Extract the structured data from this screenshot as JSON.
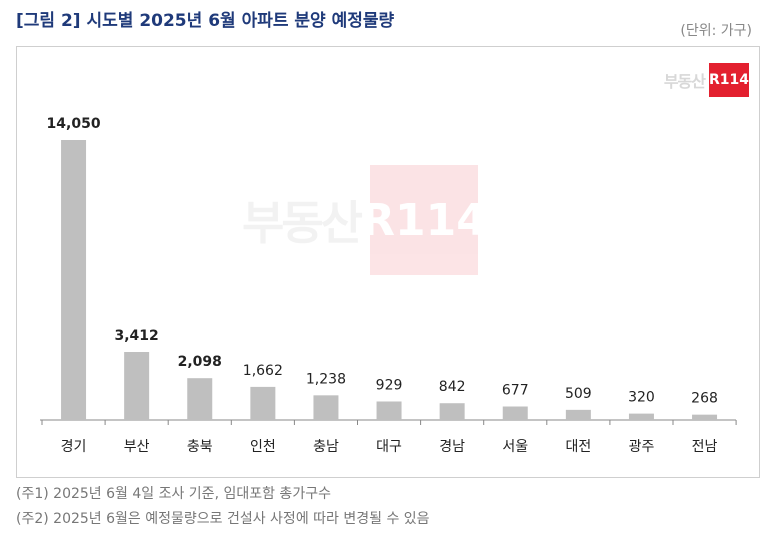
{
  "title": "[그림 2] 시도별 2025년 6월 아파트 분양 예정물량",
  "unit": "(단위: 가구)",
  "logo": {
    "text": "부동산",
    "badge": "R114"
  },
  "watermark": {
    "text": "부동산",
    "badge": "R114"
  },
  "notes": [
    "(주1) 2025년 6월 4일 조사 기준, 임대포함 총가구수",
    "(주2) 2025년 6월은 예정물량으로 건설사 사정에 따라 변경될 수 있음"
  ],
  "colors": {
    "bar": "#bfbfbf",
    "title": "#1f3a7a",
    "logo": "#e3202f"
  },
  "chart_data": {
    "type": "bar",
    "categories": [
      "경기",
      "부산",
      "충북",
      "인천",
      "충남",
      "대구",
      "경남",
      "서울",
      "대전",
      "광주",
      "전남"
    ],
    "values": [
      14050,
      3412,
      2098,
      1662,
      1238,
      929,
      842,
      677,
      509,
      320,
      268
    ],
    "data_labels": [
      "14,050",
      "3,412",
      "2,098",
      "1,662",
      "1,238",
      "929",
      "842",
      "677",
      "509",
      "320",
      "268"
    ],
    "bold_labels": [
      true,
      true,
      true,
      false,
      false,
      false,
      false,
      false,
      false,
      false,
      false
    ],
    "ylim": [
      0,
      14050
    ],
    "grid": false,
    "legend": "none"
  }
}
